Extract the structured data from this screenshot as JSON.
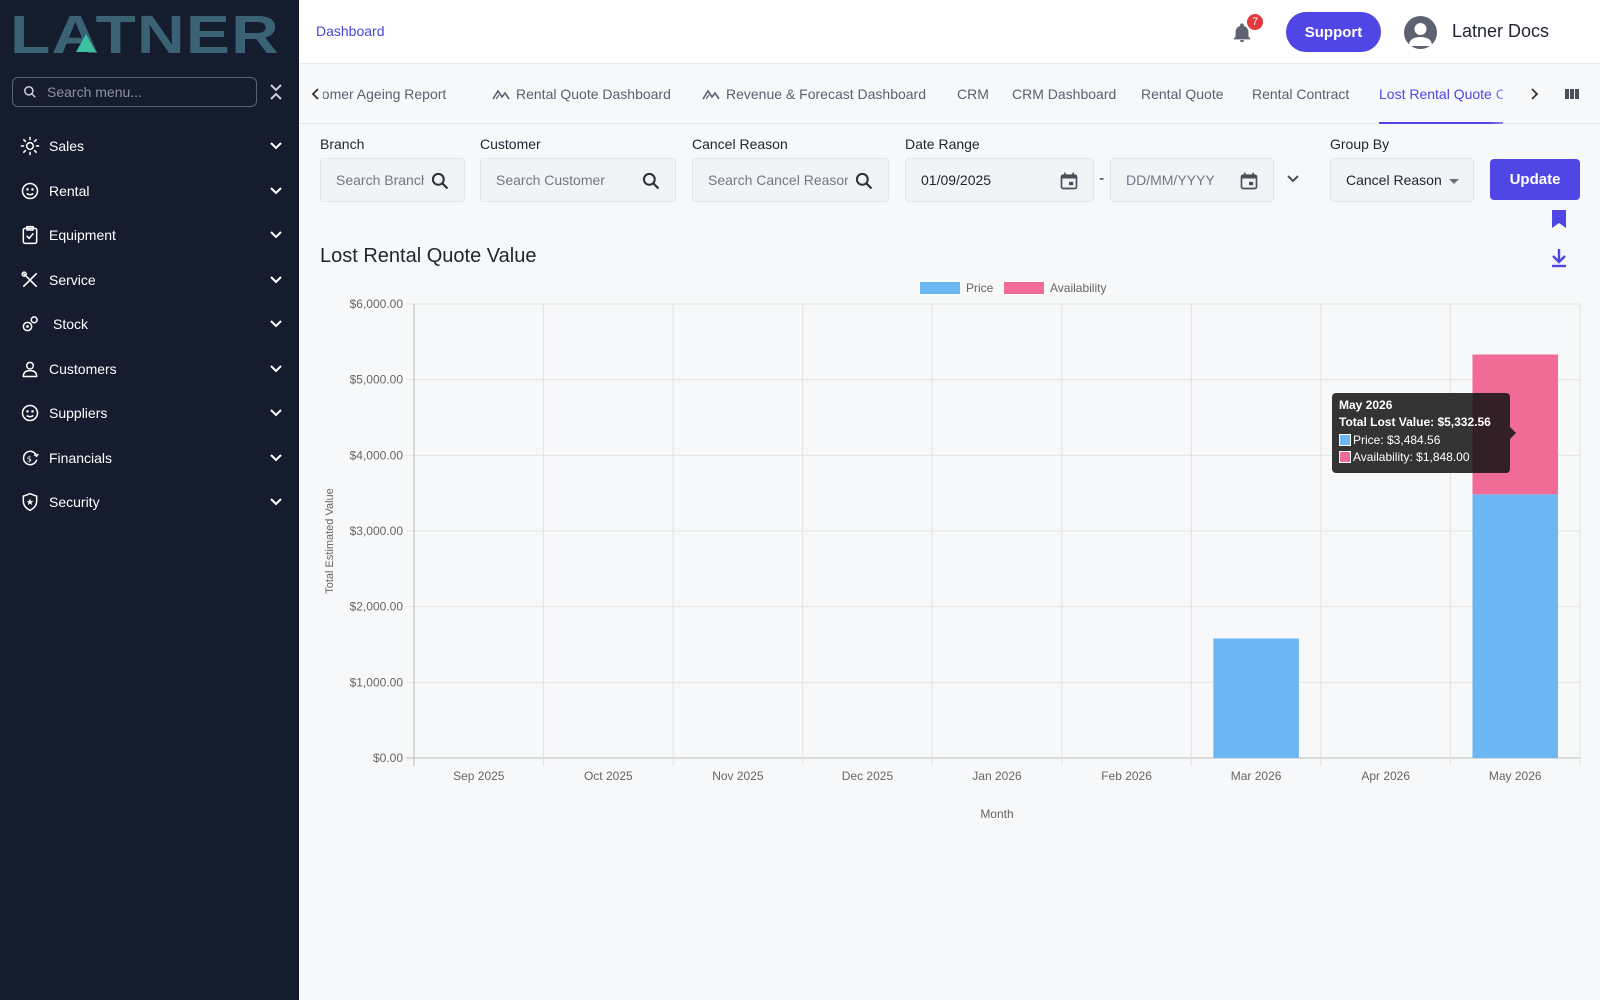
{
  "brand": {
    "logo_text": "LATNER"
  },
  "sidebar": {
    "search_placeholder": "Search menu...",
    "items": [
      {
        "label": "Sales",
        "icon": "sales-icon"
      },
      {
        "label": "Rental",
        "icon": "rental-icon"
      },
      {
        "label": "Equipment",
        "icon": "equipment-icon"
      },
      {
        "label": "Service",
        "icon": "service-icon"
      },
      {
        "label": "Stock",
        "icon": "stock-icon"
      },
      {
        "label": "Customers",
        "icon": "customers-icon"
      },
      {
        "label": "Suppliers",
        "icon": "suppliers-icon"
      },
      {
        "label": "Financials",
        "icon": "financials-icon"
      },
      {
        "label": "Security",
        "icon": "security-icon"
      }
    ]
  },
  "header": {
    "breadcrumb": "Dashboard",
    "notification_count": "7",
    "support_label": "Support",
    "user_name": "Latner Docs"
  },
  "tabs": [
    {
      "label": "Customer Ageing Report",
      "icon": false,
      "active": false
    },
    {
      "label": "Rental Quote Dashboard",
      "icon": true,
      "active": false
    },
    {
      "label": "Revenue & Forecast Dashboard",
      "icon": true,
      "active": false
    },
    {
      "label": "CRM",
      "icon": false,
      "active": false
    },
    {
      "label": "CRM Dashboard",
      "icon": false,
      "active": false
    },
    {
      "label": "Rental Quote",
      "icon": false,
      "active": false
    },
    {
      "label": "Rental Contract",
      "icon": false,
      "active": false
    },
    {
      "label": "Lost Rental Quote Chart",
      "icon": false,
      "active": true
    }
  ],
  "filters": {
    "branch": {
      "label": "Branch",
      "placeholder": "Search Branch"
    },
    "customer": {
      "label": "Customer",
      "placeholder": "Search Customer"
    },
    "cancel_reason": {
      "label": "Cancel Reason",
      "placeholder": "Search Cancel Reason"
    },
    "date_range": {
      "label": "Date Range",
      "from_value": "01/09/2025",
      "to_placeholder": "DD/MM/YYYY",
      "separator": "-"
    },
    "group_by": {
      "label": "Group By",
      "value": "Cancel Reason"
    },
    "update_label": "Update"
  },
  "chart_panel": {
    "title": "Lost Rental Quote Value"
  },
  "chart_data": {
    "type": "bar",
    "stacked": true,
    "categories": [
      "Sep 2025",
      "Oct 2025",
      "Nov 2025",
      "Dec 2025",
      "Jan 2026",
      "Feb 2026",
      "Mar 2026",
      "Apr 2026",
      "May 2026"
    ],
    "series": [
      {
        "name": "Price",
        "color": "#6cb6f3",
        "values": [
          0,
          0,
          0,
          0,
          0,
          0,
          1580,
          0,
          3484.56
        ]
      },
      {
        "name": "Availability",
        "color": "#f06b95",
        "values": [
          0,
          0,
          0,
          0,
          0,
          0,
          0,
          0,
          1848.0
        ]
      }
    ],
    "xlabel": "Month",
    "ylabel": "Total Estimated Value",
    "ylim": [
      0,
      6000
    ],
    "yticks": [
      "$0.00",
      "$1,000.00",
      "$2,000.00",
      "$3,000.00",
      "$4,000.00",
      "$5,000.00",
      "$6,000.00"
    ],
    "grid": true,
    "legend": "top-center"
  },
  "tooltip": {
    "title": "May 2026",
    "total": "Total Lost Value: $5,332.56",
    "price": "Price: $3,484.56",
    "availability": "Availability: $1,848.00",
    "price_color": "#6cb6f3",
    "availability_color": "#f06b95"
  }
}
